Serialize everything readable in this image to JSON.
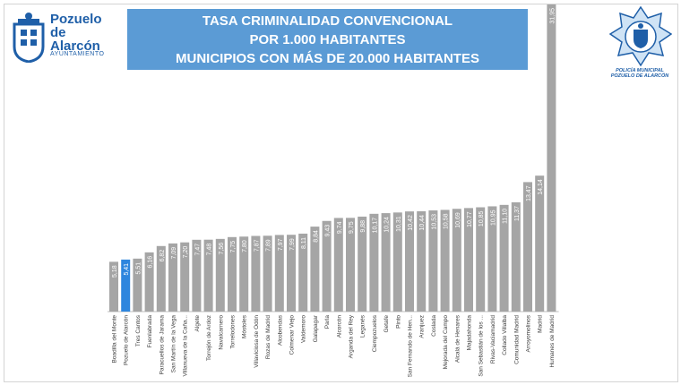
{
  "header": {
    "title_lines": [
      "TASA CRIMINALIDAD CONVENCIONAL",
      "POR 1.000 HABITANTES",
      "MUNICIPIOS CON MÁS DE 20.000 HABITANTES"
    ]
  },
  "logo_left": {
    "name_line1": "Pozuelo",
    "name_line2": "de Alarcón",
    "subtitle": "AYUNTAMIENTO"
  },
  "logo_right": {
    "caption_line1": "POLICÍA MUNICIPAL",
    "caption_line2": "POZUELO DE ALARCÓN"
  },
  "colors": {
    "bar": "#a5a5a5",
    "highlight": "#2e86de",
    "title_bg": "#5b9bd5",
    "logo_blue": "#1f5fa8"
  },
  "chart_data": {
    "type": "bar",
    "categories": [
      "Boadilla del Monte",
      "Pozuelo de Alarcón",
      "Tres Cantos",
      "Fuenlabrada",
      "Paracuellos de Jarama",
      "San Martín de la Vega",
      "Villanueva de la Caña...",
      "Algete",
      "Torrejón de Ardoz",
      "Navalcarnero",
      "Torrelodones",
      "Móstoles",
      "Villaviciosa de Odón",
      "Rozas de Madrid",
      "Alcobendas",
      "Colmenar Viejo",
      "Valdemoro",
      "Galapagar",
      "Parla",
      "Alcorcón",
      "Arganda del Rey",
      "Leganés",
      "Ciempozuelos",
      "Getafe",
      "Pinto",
      "San Fernando de Hen...",
      "Aranjuez",
      "Coslada",
      "Mejorada del Campo",
      "Alcalá de Henares",
      "Majadahonda",
      "San Sebastián de los ...",
      "Rivas-Vaciamadrid",
      "Collado Villalba",
      "Comunidad Madrid",
      "Arroyomolinos",
      "Madrid",
      "Humanes de Madrid"
    ],
    "values": [
      5.18,
      5.41,
      5.51,
      6.16,
      6.82,
      7.09,
      7.2,
      7.47,
      7.48,
      7.56,
      7.75,
      7.8,
      7.87,
      7.89,
      7.97,
      7.99,
      8.11,
      8.84,
      9.43,
      9.74,
      9.75,
      9.88,
      10.17,
      10.24,
      10.31,
      10.42,
      10.44,
      10.53,
      10.58,
      10.69,
      10.77,
      10.85,
      10.95,
      11.1,
      11.37,
      13.47,
      14.14,
      31.95
    ],
    "value_labels": [
      "5,18",
      "5,41",
      "5,51",
      "6,16",
      "6,82",
      "7,09",
      "7,20",
      "7,47",
      "7,48",
      "7,56",
      "7,75",
      "7,80",
      "7,87",
      "7,89",
      "7,97",
      "7,99",
      "8,11",
      "8,84",
      "9,43",
      "9,74",
      "9,75",
      "9,88",
      "10,17",
      "10,24",
      "10,31",
      "10,42",
      "10,44",
      "10,53",
      "10,58",
      "10,69",
      "10,77",
      "10,85",
      "10,95",
      "11,10",
      "11,37",
      "13,47",
      "14,14",
      "31,95"
    ],
    "highlight_index": 1,
    "ylim": [
      0,
      31.95
    ],
    "grid": false,
    "legend": "none",
    "title": "",
    "xlabel": "",
    "ylabel": ""
  }
}
